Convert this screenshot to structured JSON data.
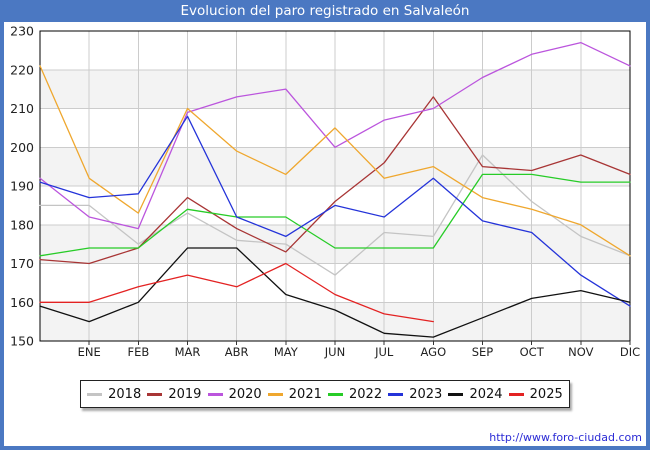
{
  "header": {
    "title": "Evolucion del paro registrado en Salvaleón"
  },
  "footer": {
    "url": "http://www.foro-ciudad.com"
  },
  "chart_data": {
    "type": "line",
    "title": "Evolucion del paro registrado en Salvaleón",
    "categories": [
      "",
      "ENE",
      "FEB",
      "MAR",
      "ABR",
      "MAY",
      "JUN",
      "JUL",
      "AGO",
      "SEP",
      "OCT",
      "NOV",
      "DIC"
    ],
    "note_first_point": "unlabeled point at plot left edge (previous December)",
    "ylim": [
      150,
      230
    ],
    "y_ticks": [
      230,
      220,
      210,
      200,
      190,
      180,
      170,
      160,
      150
    ],
    "grid": true,
    "legend_position": "bottom",
    "series": [
      {
        "name": "2018",
        "color": "#c4c4c4",
        "values": [
          185,
          185,
          175,
          183,
          176,
          175,
          167,
          178,
          177,
          198,
          186,
          177,
          172
        ]
      },
      {
        "name": "2019",
        "color": "#a83535",
        "values": [
          171,
          170,
          174,
          187,
          179,
          173,
          186,
          196,
          213,
          195,
          194,
          198,
          193
        ]
      },
      {
        "name": "2020",
        "color": "#bb55dd",
        "values": [
          192,
          182,
          179,
          209,
          213,
          215,
          200,
          207,
          210,
          218,
          224,
          227,
          221
        ]
      },
      {
        "name": "2021",
        "color": "#efa72e",
        "values": [
          221,
          192,
          183,
          210,
          199,
          193,
          205,
          192,
          195,
          187,
          184,
          180,
          172
        ]
      },
      {
        "name": "2022",
        "color": "#27cc27",
        "values": [
          172,
          174,
          174,
          184,
          182,
          182,
          174,
          174,
          174,
          193,
          193,
          191,
          191
        ]
      },
      {
        "name": "2023",
        "color": "#2433d9",
        "values": [
          191,
          187,
          188,
          208,
          182,
          177,
          185,
          182,
          192,
          181,
          178,
          167,
          159
        ]
      },
      {
        "name": "2024",
        "color": "#111111",
        "values": [
          159,
          155,
          160,
          174,
          174,
          162,
          158,
          152,
          151,
          156,
          161,
          163,
          160
        ]
      },
      {
        "name": "2025",
        "color": "#e32222",
        "values": [
          160,
          160,
          164,
          167,
          164,
          170,
          162,
          157,
          155,
          null,
          null,
          null,
          null
        ]
      }
    ]
  },
  "colors": {
    "frame": "#4b78c2",
    "grid": "#cccccc",
    "band": "#f3f3f3",
    "plot_border": "#000000",
    "axis_text": "#222222"
  }
}
